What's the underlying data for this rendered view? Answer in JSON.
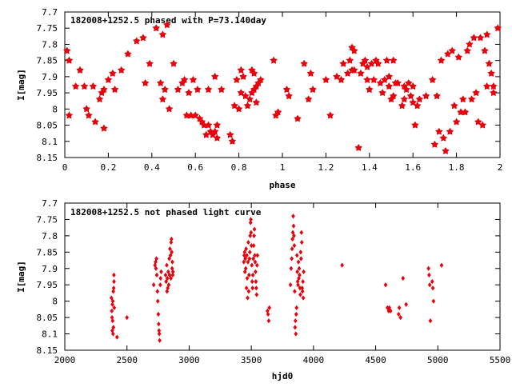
{
  "colors": {
    "marker": "#e8000b",
    "frame": "#000000",
    "background": "#ffffff"
  },
  "chart_data": [
    {
      "type": "scatter",
      "title": "182008+1252.5 phased with P=73.140day",
      "xlabel": "phase",
      "ylabel": "I[mag]",
      "xlim": [
        0,
        2
      ],
      "ylim": [
        7.7,
        8.15
      ],
      "y_inverted": true,
      "grid": false,
      "marker": "star",
      "x_ticks": [
        0,
        0.2,
        0.4,
        0.6,
        0.8,
        1,
        1.2,
        1.4,
        1.6,
        1.8,
        2
      ],
      "x_tick_labels": [
        "0",
        "0.2",
        "0.4",
        "0.6",
        "0.8",
        "1",
        "1.2",
        "1.4",
        "1.6",
        "1.8",
        "2"
      ],
      "y_ticks": [
        7.7,
        7.75,
        7.8,
        7.85,
        7.9,
        7.95,
        8,
        8.05,
        8.1,
        8.15
      ],
      "y_tick_labels": [
        "7.7",
        "7.75",
        "7.8",
        "7.85",
        "7.9",
        "7.95",
        "8",
        "8.05",
        "8.1",
        "8.15"
      ],
      "points": [
        [
          0.01,
          7.82
        ],
        [
          0.02,
          7.85
        ],
        [
          0.02,
          8.02
        ],
        [
          0.05,
          7.93
        ],
        [
          0.07,
          7.88
        ],
        [
          0.09,
          7.93
        ],
        [
          0.1,
          8.0
        ],
        [
          0.11,
          8.02
        ],
        [
          0.13,
          7.93
        ],
        [
          0.14,
          8.04
        ],
        [
          0.16,
          7.97
        ],
        [
          0.17,
          7.95
        ],
        [
          0.18,
          7.94
        ],
        [
          0.18,
          8.06
        ],
        [
          0.2,
          7.91
        ],
        [
          0.22,
          7.89
        ],
        [
          0.23,
          7.94
        ],
        [
          0.26,
          7.88
        ],
        [
          0.29,
          7.83
        ],
        [
          0.33,
          7.79
        ],
        [
          0.36,
          7.78
        ],
        [
          0.37,
          7.92
        ],
        [
          0.39,
          7.86
        ],
        [
          0.42,
          7.75
        ],
        [
          0.44,
          7.92
        ],
        [
          0.45,
          7.97
        ],
        [
          0.45,
          7.77
        ],
        [
          0.46,
          7.94
        ],
        [
          0.47,
          7.74
        ],
        [
          0.48,
          8.0
        ],
        [
          0.5,
          7.86
        ],
        [
          0.52,
          7.94
        ],
        [
          0.54,
          7.92
        ],
        [
          0.55,
          7.91
        ],
        [
          0.56,
          8.02
        ],
        [
          0.57,
          7.95
        ],
        [
          0.58,
          8.02
        ],
        [
          0.59,
          7.91
        ],
        [
          0.6,
          8.02
        ],
        [
          0.61,
          7.94
        ],
        [
          0.62,
          8.03
        ],
        [
          0.63,
          8.04
        ],
        [
          0.64,
          8.05
        ],
        [
          0.65,
          8.08
        ],
        [
          0.66,
          8.05
        ],
        [
          0.66,
          7.94
        ],
        [
          0.67,
          8.07
        ],
        [
          0.68,
          8.08
        ],
        [
          0.69,
          8.07
        ],
        [
          0.69,
          7.9
        ],
        [
          0.7,
          8.09
        ],
        [
          0.7,
          8.05
        ],
        [
          0.72,
          7.94
        ],
        [
          0.76,
          8.08
        ],
        [
          0.77,
          8.1
        ],
        [
          0.78,
          7.99
        ],
        [
          0.79,
          7.91
        ],
        [
          0.8,
          8.0
        ],
        [
          0.81,
          7.95
        ],
        [
          0.81,
          7.88
        ],
        [
          0.82,
          7.9
        ],
        [
          0.83,
          7.96
        ],
        [
          0.84,
          7.99
        ],
        [
          0.85,
          7.97
        ],
        [
          0.86,
          7.95
        ],
        [
          0.86,
          7.88
        ],
        [
          0.87,
          7.94
        ],
        [
          0.87,
          7.89
        ],
        [
          0.88,
          7.93
        ],
        [
          0.88,
          7.98
        ],
        [
          0.89,
          7.92
        ],
        [
          0.9,
          7.91
        ],
        [
          0.96,
          7.85
        ],
        [
          0.97,
          8.02
        ],
        [
          0.98,
          8.01
        ],
        [
          1.02,
          7.94
        ],
        [
          1.03,
          7.96
        ],
        [
          1.07,
          8.03
        ],
        [
          1.1,
          7.86
        ],
        [
          1.12,
          7.97
        ],
        [
          1.13,
          7.89
        ],
        [
          1.14,
          7.94
        ],
        [
          1.2,
          7.91
        ],
        [
          1.22,
          8.02
        ],
        [
          1.25,
          7.9
        ],
        [
          1.27,
          7.91
        ],
        [
          1.28,
          7.86
        ],
        [
          1.3,
          7.89
        ],
        [
          1.31,
          7.85
        ],
        [
          1.32,
          7.88
        ],
        [
          1.32,
          7.81
        ],
        [
          1.33,
          7.82
        ],
        [
          1.33,
          7.88
        ],
        [
          1.35,
          8.12
        ],
        [
          1.36,
          7.89
        ],
        [
          1.37,
          7.86
        ],
        [
          1.38,
          7.85
        ],
        [
          1.39,
          7.87
        ],
        [
          1.39,
          7.91
        ],
        [
          1.4,
          7.94
        ],
        [
          1.41,
          7.86
        ],
        [
          1.42,
          7.91
        ],
        [
          1.43,
          7.85
        ],
        [
          1.44,
          7.86
        ],
        [
          1.45,
          7.92
        ],
        [
          1.46,
          7.95
        ],
        [
          1.47,
          7.91
        ],
        [
          1.48,
          7.85
        ],
        [
          1.49,
          7.93
        ],
        [
          1.49,
          7.9
        ],
        [
          1.5,
          7.97
        ],
        [
          1.51,
          7.96
        ],
        [
          1.51,
          7.85
        ],
        [
          1.52,
          7.92
        ],
        [
          1.53,
          7.92
        ],
        [
          1.55,
          7.99
        ],
        [
          1.56,
          7.97
        ],
        [
          1.56,
          7.93
        ],
        [
          1.57,
          7.94
        ],
        [
          1.58,
          7.92
        ],
        [
          1.59,
          7.96
        ],
        [
          1.6,
          7.98
        ],
        [
          1.6,
          7.93
        ],
        [
          1.61,
          8.05
        ],
        [
          1.62,
          7.99
        ],
        [
          1.63,
          7.97
        ],
        [
          1.66,
          7.96
        ],
        [
          1.69,
          7.91
        ],
        [
          1.7,
          8.11
        ],
        [
          1.71,
          7.96
        ],
        [
          1.72,
          8.07
        ],
        [
          1.73,
          7.85
        ],
        [
          1.74,
          8.09
        ],
        [
          1.75,
          8.13
        ],
        [
          1.76,
          7.83
        ],
        [
          1.77,
          8.07
        ],
        [
          1.78,
          7.82
        ],
        [
          1.79,
          7.99
        ],
        [
          1.8,
          8.04
        ],
        [
          1.81,
          7.84
        ],
        [
          1.82,
          8.01
        ],
        [
          1.83,
          7.97
        ],
        [
          1.84,
          8.01
        ],
        [
          1.85,
          7.82
        ],
        [
          1.86,
          7.8
        ],
        [
          1.87,
          7.97
        ],
        [
          1.88,
          7.78
        ],
        [
          1.89,
          7.95
        ],
        [
          1.9,
          8.04
        ],
        [
          1.91,
          7.78
        ],
        [
          1.92,
          8.05
        ],
        [
          1.93,
          7.82
        ],
        [
          1.94,
          7.77
        ],
        [
          1.94,
          7.93
        ],
        [
          1.95,
          7.86
        ],
        [
          1.96,
          7.89
        ],
        [
          1.97,
          7.93
        ],
        [
          1.97,
          7.95
        ],
        [
          1.99,
          7.75
        ]
      ]
    },
    {
      "type": "scatter",
      "title": "182008+1252.5 not phased light curve",
      "xlabel": "hjd0",
      "ylabel": "I[mag]",
      "xlim": [
        2000,
        5500
      ],
      "ylim": [
        7.7,
        8.15
      ],
      "y_inverted": true,
      "grid": false,
      "marker": "diamond",
      "x_ticks": [
        2000,
        2500,
        3000,
        3500,
        4000,
        4500,
        5000,
        5500
      ],
      "x_tick_labels": [
        "2000",
        "2500",
        "3000",
        "3500",
        "4000",
        "4500",
        "5000",
        "5500"
      ],
      "y_ticks": [
        7.7,
        7.75,
        7.8,
        7.85,
        7.9,
        7.95,
        8,
        8.05,
        8.1,
        8.15
      ],
      "y_tick_labels": [
        "7.7",
        "7.75",
        "7.8",
        "7.85",
        "7.9",
        "7.95",
        "8",
        "8.05",
        "8.1",
        "8.15"
      ],
      "points": [
        [
          2375,
          7.99
        ],
        [
          2378,
          8.03
        ],
        [
          2380,
          8.05
        ],
        [
          2382,
          8.09
        ],
        [
          2383,
          8.01
        ],
        [
          2385,
          8.06
        ],
        [
          2386,
          8.0
        ],
        [
          2388,
          8.1
        ],
        [
          2390,
          7.97
        ],
        [
          2391,
          8.08
        ],
        [
          2393,
          7.96
        ],
        [
          2395,
          7.92
        ],
        [
          2396,
          7.94
        ],
        [
          2398,
          8.02
        ],
        [
          2420,
          8.11
        ],
        [
          2500,
          8.05
        ],
        [
          2715,
          7.95
        ],
        [
          2725,
          7.89
        ],
        [
          2730,
          7.88
        ],
        [
          2733,
          7.9
        ],
        [
          2737,
          7.87
        ],
        [
          2740,
          7.92
        ],
        [
          2745,
          7.97
        ],
        [
          2748,
          8.0
        ],
        [
          2752,
          8.04
        ],
        [
          2755,
          8.07
        ],
        [
          2758,
          8.09
        ],
        [
          2760,
          8.1
        ],
        [
          2763,
          8.12
        ],
        [
          2768,
          7.95
        ],
        [
          2770,
          7.93
        ],
        [
          2775,
          7.91
        ],
        [
          2810,
          7.92
        ],
        [
          2815,
          7.94
        ],
        [
          2820,
          7.89
        ],
        [
          2822,
          7.97
        ],
        [
          2825,
          7.93
        ],
        [
          2828,
          7.96
        ],
        [
          2832,
          7.91
        ],
        [
          2836,
          7.95
        ],
        [
          2840,
          7.87
        ],
        [
          2843,
          7.92
        ],
        [
          2846,
          7.84
        ],
        [
          2850,
          7.86
        ],
        [
          2853,
          7.93
        ],
        [
          2855,
          7.82
        ],
        [
          2858,
          7.81
        ],
        [
          2860,
          7.85
        ],
        [
          2863,
          7.9
        ],
        [
          2865,
          7.88
        ],
        [
          2868,
          7.92
        ],
        [
          2870,
          7.91
        ],
        [
          3440,
          7.88
        ],
        [
          3443,
          7.86
        ],
        [
          3446,
          7.85
        ],
        [
          3449,
          7.91
        ],
        [
          3452,
          7.87
        ],
        [
          3455,
          7.9
        ],
        [
          3458,
          7.84
        ],
        [
          3461,
          7.96
        ],
        [
          3464,
          7.86
        ],
        [
          3467,
          7.93
        ],
        [
          3470,
          7.99
        ],
        [
          3473,
          7.88
        ],
        [
          3476,
          7.82
        ],
        [
          3479,
          7.97
        ],
        [
          3482,
          7.92
        ],
        [
          3485,
          7.87
        ],
        [
          3488,
          7.85
        ],
        [
          3491,
          7.8
        ],
        [
          3494,
          7.76
        ],
        [
          3496,
          7.75
        ],
        [
          3498,
          7.79
        ],
        [
          3501,
          7.83
        ],
        [
          3504,
          7.89
        ],
        [
          3507,
          7.94
        ],
        [
          3510,
          7.96
        ],
        [
          3513,
          7.92
        ],
        [
          3516,
          7.87
        ],
        [
          3519,
          7.83
        ],
        [
          3522,
          7.8
        ],
        [
          3525,
          7.78
        ],
        [
          3528,
          7.86
        ],
        [
          3531,
          7.88
        ],
        [
          3534,
          7.91
        ],
        [
          3537,
          7.94
        ],
        [
          3540,
          7.96
        ],
        [
          3543,
          7.98
        ],
        [
          3546,
          7.89
        ],
        [
          3549,
          7.86
        ],
        [
          3630,
          8.03
        ],
        [
          3635,
          8.04
        ],
        [
          3640,
          8.06
        ],
        [
          3645,
          8.02
        ],
        [
          3815,
          7.95
        ],
        [
          3820,
          7.9
        ],
        [
          3825,
          7.87
        ],
        [
          3828,
          7.84
        ],
        [
          3831,
          7.81
        ],
        [
          3834,
          7.79
        ],
        [
          3837,
          7.74
        ],
        [
          3840,
          7.77
        ],
        [
          3843,
          7.8
        ],
        [
          3846,
          7.83
        ],
        [
          3849,
          7.97
        ],
        [
          3852,
          8.08
        ],
        [
          3855,
          8.06
        ],
        [
          3858,
          8.1
        ],
        [
          3861,
          8.04
        ],
        [
          3864,
          8.02
        ],
        [
          3867,
          7.86
        ],
        [
          3870,
          7.91
        ],
        [
          3873,
          7.94
        ],
        [
          3876,
          7.95
        ],
        [
          3879,
          7.88
        ],
        [
          3882,
          7.93
        ],
        [
          3885,
          7.9
        ],
        [
          3888,
          7.92
        ],
        [
          3891,
          7.96
        ],
        [
          3894,
          7.98
        ],
        [
          3897,
          7.85
        ],
        [
          3900,
          7.87
        ],
        [
          3903,
          7.79
        ],
        [
          3906,
          7.82
        ],
        [
          3909,
          7.96
        ],
        [
          3912,
          7.97
        ],
        [
          3915,
          7.94
        ],
        [
          3918,
          7.99
        ],
        [
          3921,
          7.91
        ],
        [
          4230,
          7.89
        ],
        [
          4580,
          7.95
        ],
        [
          4595,
          8.02
        ],
        [
          4605,
          8.03
        ],
        [
          4610,
          8.02
        ],
        [
          4620,
          8.03
        ],
        [
          4685,
          8.04
        ],
        [
          4690,
          8.02
        ],
        [
          4700,
          8.05
        ],
        [
          4720,
          7.93
        ],
        [
          4745,
          8.01
        ],
        [
          4925,
          7.9
        ],
        [
          4930,
          7.92
        ],
        [
          4935,
          7.95
        ],
        [
          4940,
          8.06
        ],
        [
          4955,
          7.94
        ],
        [
          4960,
          7.96
        ],
        [
          4965,
          8.0
        ],
        [
          5030,
          7.89
        ]
      ]
    }
  ]
}
